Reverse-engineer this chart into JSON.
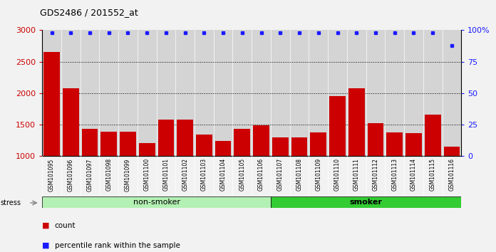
{
  "title": "GDS2486 / 201552_at",
  "samples": [
    "GSM101095",
    "GSM101096",
    "GSM101097",
    "GSM101098",
    "GSM101099",
    "GSM101100",
    "GSM101101",
    "GSM101102",
    "GSM101103",
    "GSM101104",
    "GSM101105",
    "GSM101106",
    "GSM101107",
    "GSM101108",
    "GSM101109",
    "GSM101110",
    "GSM101111",
    "GSM101112",
    "GSM101113",
    "GSM101114",
    "GSM101115",
    "GSM101116"
  ],
  "counts": [
    2650,
    2080,
    1440,
    1390,
    1390,
    1210,
    1580,
    1580,
    1350,
    1240,
    1440,
    1490,
    1300,
    1300,
    1380,
    1960,
    2080,
    1520,
    1380,
    1370,
    1660,
    1150
  ],
  "percentile_ranks": [
    98,
    98,
    98,
    98,
    98,
    98,
    98,
    98,
    98,
    98,
    98,
    98,
    98,
    98,
    98,
    98,
    98,
    98,
    98,
    98,
    98,
    88
  ],
  "ylim_left": [
    1000,
    3000
  ],
  "ylim_right": [
    0,
    100
  ],
  "yticks_left": [
    1000,
    1500,
    2000,
    2500,
    3000
  ],
  "yticks_right": [
    0,
    25,
    50,
    75,
    100
  ],
  "bar_color": "#cc0000",
  "dot_color": "#1a1aff",
  "non_smoker_color": "#b3f0b3",
  "smoker_color": "#33cc33",
  "non_smoker_count": 12,
  "smoker_count": 10,
  "stress_label": "stress",
  "group_label_non_smoker": "non-smoker",
  "group_label_smoker": "smoker",
  "legend_count_label": "count",
  "legend_percentile_label": "percentile rank within the sample",
  "plot_bg_color": "#d4d4d4",
  "fig_bg_color": "#f2f2f2"
}
